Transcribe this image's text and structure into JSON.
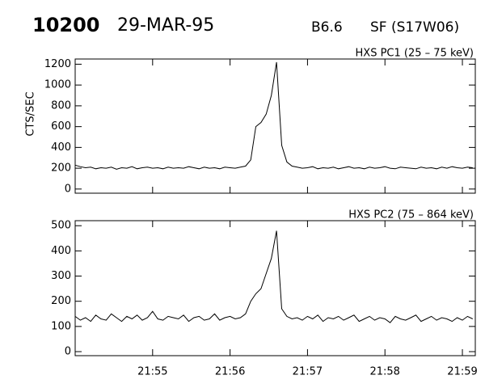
{
  "header": {
    "number": "10200",
    "date": "29-MAR-95",
    "class": "B6.6",
    "flare": "SF (S17W06)"
  },
  "chart_data": [
    {
      "type": "line",
      "title": "HXS PC1 (25 – 75 keV)",
      "ylabel": "CTS/SEC",
      "color": "#000000",
      "xlim": [
        "21:54:00",
        "21:59:10"
      ],
      "ylim": [
        -40,
        1250
      ],
      "yticks": [
        0,
        200,
        400,
        600,
        800,
        1000,
        1200
      ],
      "xticks": [
        {
          "value": "21:55:00"
        },
        {
          "value": "21:56:00"
        },
        {
          "value": "21:57:00"
        },
        {
          "value": "21:58:00"
        },
        {
          "value": "21:59:00"
        }
      ],
      "x": [
        "21:54:00",
        "21:54:04",
        "21:54:08",
        "21:54:12",
        "21:54:16",
        "21:54:20",
        "21:54:24",
        "21:54:28",
        "21:54:32",
        "21:54:36",
        "21:54:40",
        "21:54:44",
        "21:54:48",
        "21:54:52",
        "21:54:56",
        "21:55:00",
        "21:55:04",
        "21:55:08",
        "21:55:12",
        "21:55:16",
        "21:55:20",
        "21:55:24",
        "21:55:28",
        "21:55:32",
        "21:55:36",
        "21:55:40",
        "21:55:44",
        "21:55:48",
        "21:55:52",
        "21:55:56",
        "21:56:00",
        "21:56:04",
        "21:56:08",
        "21:56:12",
        "21:56:16",
        "21:56:20",
        "21:56:24",
        "21:56:28",
        "21:56:32",
        "21:56:36",
        "21:56:40",
        "21:56:44",
        "21:56:48",
        "21:56:52",
        "21:56:56",
        "21:57:00",
        "21:57:04",
        "21:57:08",
        "21:57:12",
        "21:57:16",
        "21:57:20",
        "21:57:24",
        "21:57:28",
        "21:57:32",
        "21:57:36",
        "21:57:40",
        "21:57:44",
        "21:57:48",
        "21:57:52",
        "21:57:56",
        "21:58:00",
        "21:58:04",
        "21:58:08",
        "21:58:12",
        "21:58:16",
        "21:58:20",
        "21:58:24",
        "21:58:28",
        "21:58:32",
        "21:58:36",
        "21:58:40",
        "21:58:44",
        "21:58:48",
        "21:58:52",
        "21:58:56",
        "21:59:00",
        "21:59:04",
        "21:59:08"
      ],
      "values": [
        230,
        215,
        205,
        210,
        195,
        205,
        200,
        210,
        190,
        205,
        200,
        215,
        195,
        205,
        210,
        200,
        205,
        195,
        210,
        200,
        205,
        200,
        215,
        205,
        195,
        210,
        200,
        205,
        195,
        210,
        205,
        200,
        210,
        220,
        280,
        600,
        640,
        720,
        900,
        1220,
        420,
        260,
        220,
        210,
        200,
        205,
        215,
        195,
        205,
        200,
        210,
        195,
        205,
        215,
        200,
        205,
        195,
        210,
        200,
        205,
        215,
        200,
        195,
        210,
        205,
        200,
        195,
        210,
        200,
        205,
        195,
        210,
        200,
        215,
        205,
        200,
        210,
        205
      ]
    },
    {
      "type": "line",
      "title": "HXS PC2 (75 – 864 keV)",
      "color": "#000000",
      "xlim": [
        "21:54:00",
        "21:59:10"
      ],
      "ylim": [
        -16,
        520
      ],
      "yticks": [
        0,
        100,
        200,
        300,
        400,
        500
      ],
      "xticks": [
        {
          "value": "21:55:00",
          "label": "21:55"
        },
        {
          "value": "21:56:00",
          "label": "21:56"
        },
        {
          "value": "21:57:00",
          "label": "21:57"
        },
        {
          "value": "21:58:00",
          "label": "21:58"
        },
        {
          "value": "21:59:00",
          "label": "21:59"
        }
      ],
      "x": [
        "21:54:00",
        "21:54:04",
        "21:54:08",
        "21:54:12",
        "21:54:16",
        "21:54:20",
        "21:54:24",
        "21:54:28",
        "21:54:32",
        "21:54:36",
        "21:54:40",
        "21:54:44",
        "21:54:48",
        "21:54:52",
        "21:54:56",
        "21:55:00",
        "21:55:04",
        "21:55:08",
        "21:55:12",
        "21:55:16",
        "21:55:20",
        "21:55:24",
        "21:55:28",
        "21:55:32",
        "21:55:36",
        "21:55:40",
        "21:55:44",
        "21:55:48",
        "21:55:52",
        "21:55:56",
        "21:56:00",
        "21:56:04",
        "21:56:08",
        "21:56:12",
        "21:56:16",
        "21:56:20",
        "21:56:24",
        "21:56:28",
        "21:56:32",
        "21:56:36",
        "21:56:40",
        "21:56:44",
        "21:56:48",
        "21:56:52",
        "21:56:56",
        "21:57:00",
        "21:57:04",
        "21:57:08",
        "21:57:12",
        "21:57:16",
        "21:57:20",
        "21:57:24",
        "21:57:28",
        "21:57:32",
        "21:57:36",
        "21:57:40",
        "21:57:44",
        "21:57:48",
        "21:57:52",
        "21:57:56",
        "21:58:00",
        "21:58:04",
        "21:58:08",
        "21:58:12",
        "21:58:16",
        "21:58:20",
        "21:58:24",
        "21:58:28",
        "21:58:32",
        "21:58:36",
        "21:58:40",
        "21:58:44",
        "21:58:48",
        "21:58:52",
        "21:58:56",
        "21:59:00",
        "21:59:04",
        "21:59:08"
      ],
      "values": [
        140,
        125,
        135,
        120,
        145,
        130,
        125,
        150,
        135,
        120,
        140,
        130,
        145,
        125,
        135,
        160,
        130,
        125,
        140,
        135,
        130,
        145,
        120,
        135,
        140,
        125,
        130,
        150,
        125,
        135,
        140,
        130,
        135,
        150,
        200,
        230,
        250,
        310,
        370,
        480,
        170,
        140,
        130,
        135,
        125,
        140,
        130,
        145,
        120,
        135,
        130,
        140,
        125,
        135,
        145,
        120,
        130,
        140,
        125,
        135,
        130,
        115,
        140,
        130,
        125,
        135,
        145,
        120,
        130,
        140,
        125,
        135,
        130,
        120,
        135,
        125,
        140,
        130
      ]
    }
  ]
}
